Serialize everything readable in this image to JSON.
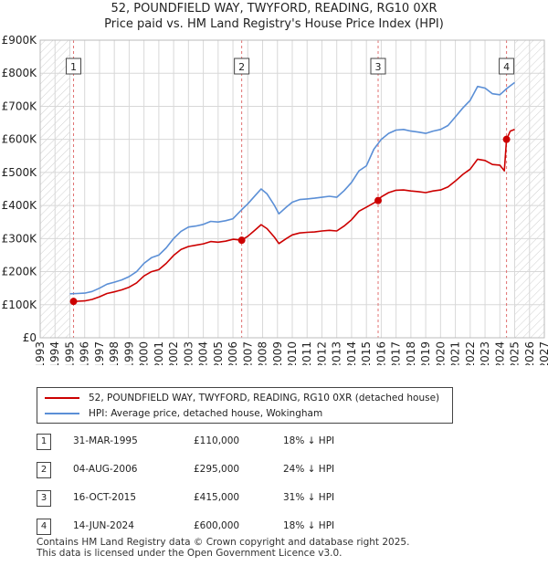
{
  "title_line1": "52, POUNDFIELD WAY, TWYFORD, READING, RG10 0XR",
  "title_line2": "Price paid vs. HM Land Registry's House Price Index (HPI)",
  "legend": {
    "red_label": "52, POUNDFIELD WAY, TWYFORD, READING, RG10 0XR (detached house)",
    "blue_label": "HPI: Average price, detached house, Wokingham",
    "red_color": "#cc0000",
    "blue_color": "#5b8fd6"
  },
  "sales": [
    {
      "num": "1",
      "date": "31-MAR-1995",
      "price": "£110,000",
      "hpi": "18% ↓ HPI"
    },
    {
      "num": "2",
      "date": "04-AUG-2006",
      "price": "£295,000",
      "hpi": "24% ↓ HPI"
    },
    {
      "num": "3",
      "date": "16-OCT-2015",
      "price": "£415,000",
      "hpi": "31% ↓ HPI"
    },
    {
      "num": "4",
      "date": "14-JUN-2024",
      "price": "£600,000",
      "hpi": "18% ↓ HPI"
    }
  ],
  "footer": {
    "line1": "Contains HM Land Registry data © Crown copyright and database right 2025.",
    "line2": "This data is licensed under the Open Government Licence v3.0."
  },
  "chart_data": {
    "type": "line",
    "title": "Price paid vs. HM Land Registry's House Price Index (HPI)",
    "xlim": [
      1993,
      2027
    ],
    "ylim": [
      0,
      900000
    ],
    "x_ticks": [
      1993,
      1994,
      1995,
      1996,
      1997,
      1998,
      1999,
      2000,
      2001,
      2002,
      2003,
      2004,
      2005,
      2006,
      2007,
      2008,
      2009,
      2010,
      2011,
      2012,
      2013,
      2014,
      2015,
      2016,
      2017,
      2018,
      2019,
      2020,
      2021,
      2022,
      2023,
      2024,
      2025,
      2026,
      2027
    ],
    "y_ticks": [
      {
        "value": 0,
        "label": "£0"
      },
      {
        "value": 100000,
        "label": "£100K"
      },
      {
        "value": 200000,
        "label": "£200K"
      },
      {
        "value": 300000,
        "label": "£300K"
      },
      {
        "value": 400000,
        "label": "£400K"
      },
      {
        "value": 500000,
        "label": "£500K"
      },
      {
        "value": 600000,
        "label": "£600K"
      },
      {
        "value": 700000,
        "label": "£700K"
      },
      {
        "value": 800000,
        "label": "£800K"
      },
      {
        "value": 900000,
        "label": "£900K"
      }
    ],
    "hatched_before": 1995.0,
    "hatched_after": 2025.0,
    "series": [
      {
        "name": "HPI: Average price, detached house, Wokingham",
        "color": "#5b8fd6",
        "points": [
          [
            1995.0,
            133000
          ],
          [
            1995.5,
            134000
          ],
          [
            1996.0,
            135000
          ],
          [
            1996.5,
            140000
          ],
          [
            1997.0,
            150000
          ],
          [
            1997.5,
            162000
          ],
          [
            1998.0,
            168000
          ],
          [
            1998.5,
            175000
          ],
          [
            1999.0,
            185000
          ],
          [
            1999.5,
            200000
          ],
          [
            2000.0,
            225000
          ],
          [
            2000.5,
            242000
          ],
          [
            2001.0,
            250000
          ],
          [
            2001.5,
            272000
          ],
          [
            2002.0,
            300000
          ],
          [
            2002.5,
            322000
          ],
          [
            2003.0,
            335000
          ],
          [
            2003.5,
            338000
          ],
          [
            2004.0,
            343000
          ],
          [
            2004.5,
            352000
          ],
          [
            2005.0,
            350000
          ],
          [
            2005.5,
            354000
          ],
          [
            2006.0,
            360000
          ],
          [
            2006.6,
            388000
          ],
          [
            2007.0,
            405000
          ],
          [
            2007.5,
            430000
          ],
          [
            2007.9,
            450000
          ],
          [
            2008.3,
            435000
          ],
          [
            2008.8,
            400000
          ],
          [
            2009.1,
            375000
          ],
          [
            2009.6,
            395000
          ],
          [
            2010.0,
            410000
          ],
          [
            2010.5,
            418000
          ],
          [
            2011.0,
            420000
          ],
          [
            2011.5,
            422000
          ],
          [
            2012.0,
            425000
          ],
          [
            2012.5,
            428000
          ],
          [
            2013.0,
            425000
          ],
          [
            2013.5,
            445000
          ],
          [
            2014.0,
            470000
          ],
          [
            2014.5,
            505000
          ],
          [
            2015.0,
            520000
          ],
          [
            2015.5,
            570000
          ],
          [
            2016.0,
            600000
          ],
          [
            2016.5,
            618000
          ],
          [
            2017.0,
            628000
          ],
          [
            2017.5,
            630000
          ],
          [
            2018.0,
            625000
          ],
          [
            2018.5,
            622000
          ],
          [
            2019.0,
            618000
          ],
          [
            2019.5,
            625000
          ],
          [
            2020.0,
            630000
          ],
          [
            2020.5,
            642000
          ],
          [
            2021.0,
            668000
          ],
          [
            2021.5,
            695000
          ],
          [
            2022.0,
            718000
          ],
          [
            2022.5,
            760000
          ],
          [
            2023.0,
            755000
          ],
          [
            2023.5,
            738000
          ],
          [
            2024.0,
            735000
          ],
          [
            2024.5,
            755000
          ],
          [
            2025.0,
            772000
          ]
        ]
      },
      {
        "name": "52, POUNDFIELD WAY, TWYFORD, READING, RG10 0XR (detached house)",
        "color": "#cc0000",
        "points": [
          [
            1995.25,
            110000
          ],
          [
            1995.5,
            110500
          ],
          [
            1996.0,
            111500
          ],
          [
            1996.5,
            116000
          ],
          [
            1997.0,
            124000
          ],
          [
            1997.5,
            134000
          ],
          [
            1998.0,
            139000
          ],
          [
            1998.5,
            145000
          ],
          [
            1999.0,
            153000
          ],
          [
            1999.5,
            166000
          ],
          [
            2000.0,
            187000
          ],
          [
            2000.5,
            200000
          ],
          [
            2001.0,
            206000
          ],
          [
            2001.5,
            225000
          ],
          [
            2002.0,
            249000
          ],
          [
            2002.5,
            267000
          ],
          [
            2003.0,
            276000
          ],
          [
            2003.5,
            280000
          ],
          [
            2004.0,
            284000
          ],
          [
            2004.5,
            291000
          ],
          [
            2005.0,
            289000
          ],
          [
            2005.5,
            292000
          ],
          [
            2006.0,
            298000
          ],
          [
            2006.59,
            295000
          ],
          [
            2007.0,
            307000
          ],
          [
            2007.5,
            326000
          ],
          [
            2007.9,
            342000
          ],
          [
            2008.3,
            330000
          ],
          [
            2008.8,
            304000
          ],
          [
            2009.1,
            285000
          ],
          [
            2009.6,
            300000
          ],
          [
            2010.0,
            311000
          ],
          [
            2010.5,
            317000
          ],
          [
            2011.0,
            319000
          ],
          [
            2011.5,
            320000
          ],
          [
            2012.0,
            323000
          ],
          [
            2012.5,
            325000
          ],
          [
            2013.0,
            323000
          ],
          [
            2013.5,
            338000
          ],
          [
            2014.0,
            357000
          ],
          [
            2014.5,
            383000
          ],
          [
            2015.0,
            395000
          ],
          [
            2015.79,
            415000
          ],
          [
            2016.0,
            426000
          ],
          [
            2016.5,
            439000
          ],
          [
            2017.0,
            446000
          ],
          [
            2017.5,
            447000
          ],
          [
            2018.0,
            444000
          ],
          [
            2018.5,
            442000
          ],
          [
            2019.0,
            439000
          ],
          [
            2019.5,
            444000
          ],
          [
            2020.0,
            447000
          ],
          [
            2020.5,
            456000
          ],
          [
            2021.0,
            474000
          ],
          [
            2021.5,
            494000
          ],
          [
            2022.0,
            510000
          ],
          [
            2022.5,
            540000
          ],
          [
            2023.0,
            536000
          ],
          [
            2023.5,
            524000
          ],
          [
            2024.0,
            522000
          ],
          [
            2024.3,
            505000
          ],
          [
            2024.45,
            600000
          ],
          [
            2024.7,
            625000
          ],
          [
            2025.0,
            630000
          ]
        ]
      }
    ],
    "sale_points": [
      {
        "num": "1",
        "x": 1995.25,
        "y": 110000
      },
      {
        "num": "2",
        "x": 2006.59,
        "y": 295000
      },
      {
        "num": "3",
        "x": 2015.79,
        "y": 415000
      },
      {
        "num": "4",
        "x": 2024.45,
        "y": 600000
      }
    ]
  }
}
